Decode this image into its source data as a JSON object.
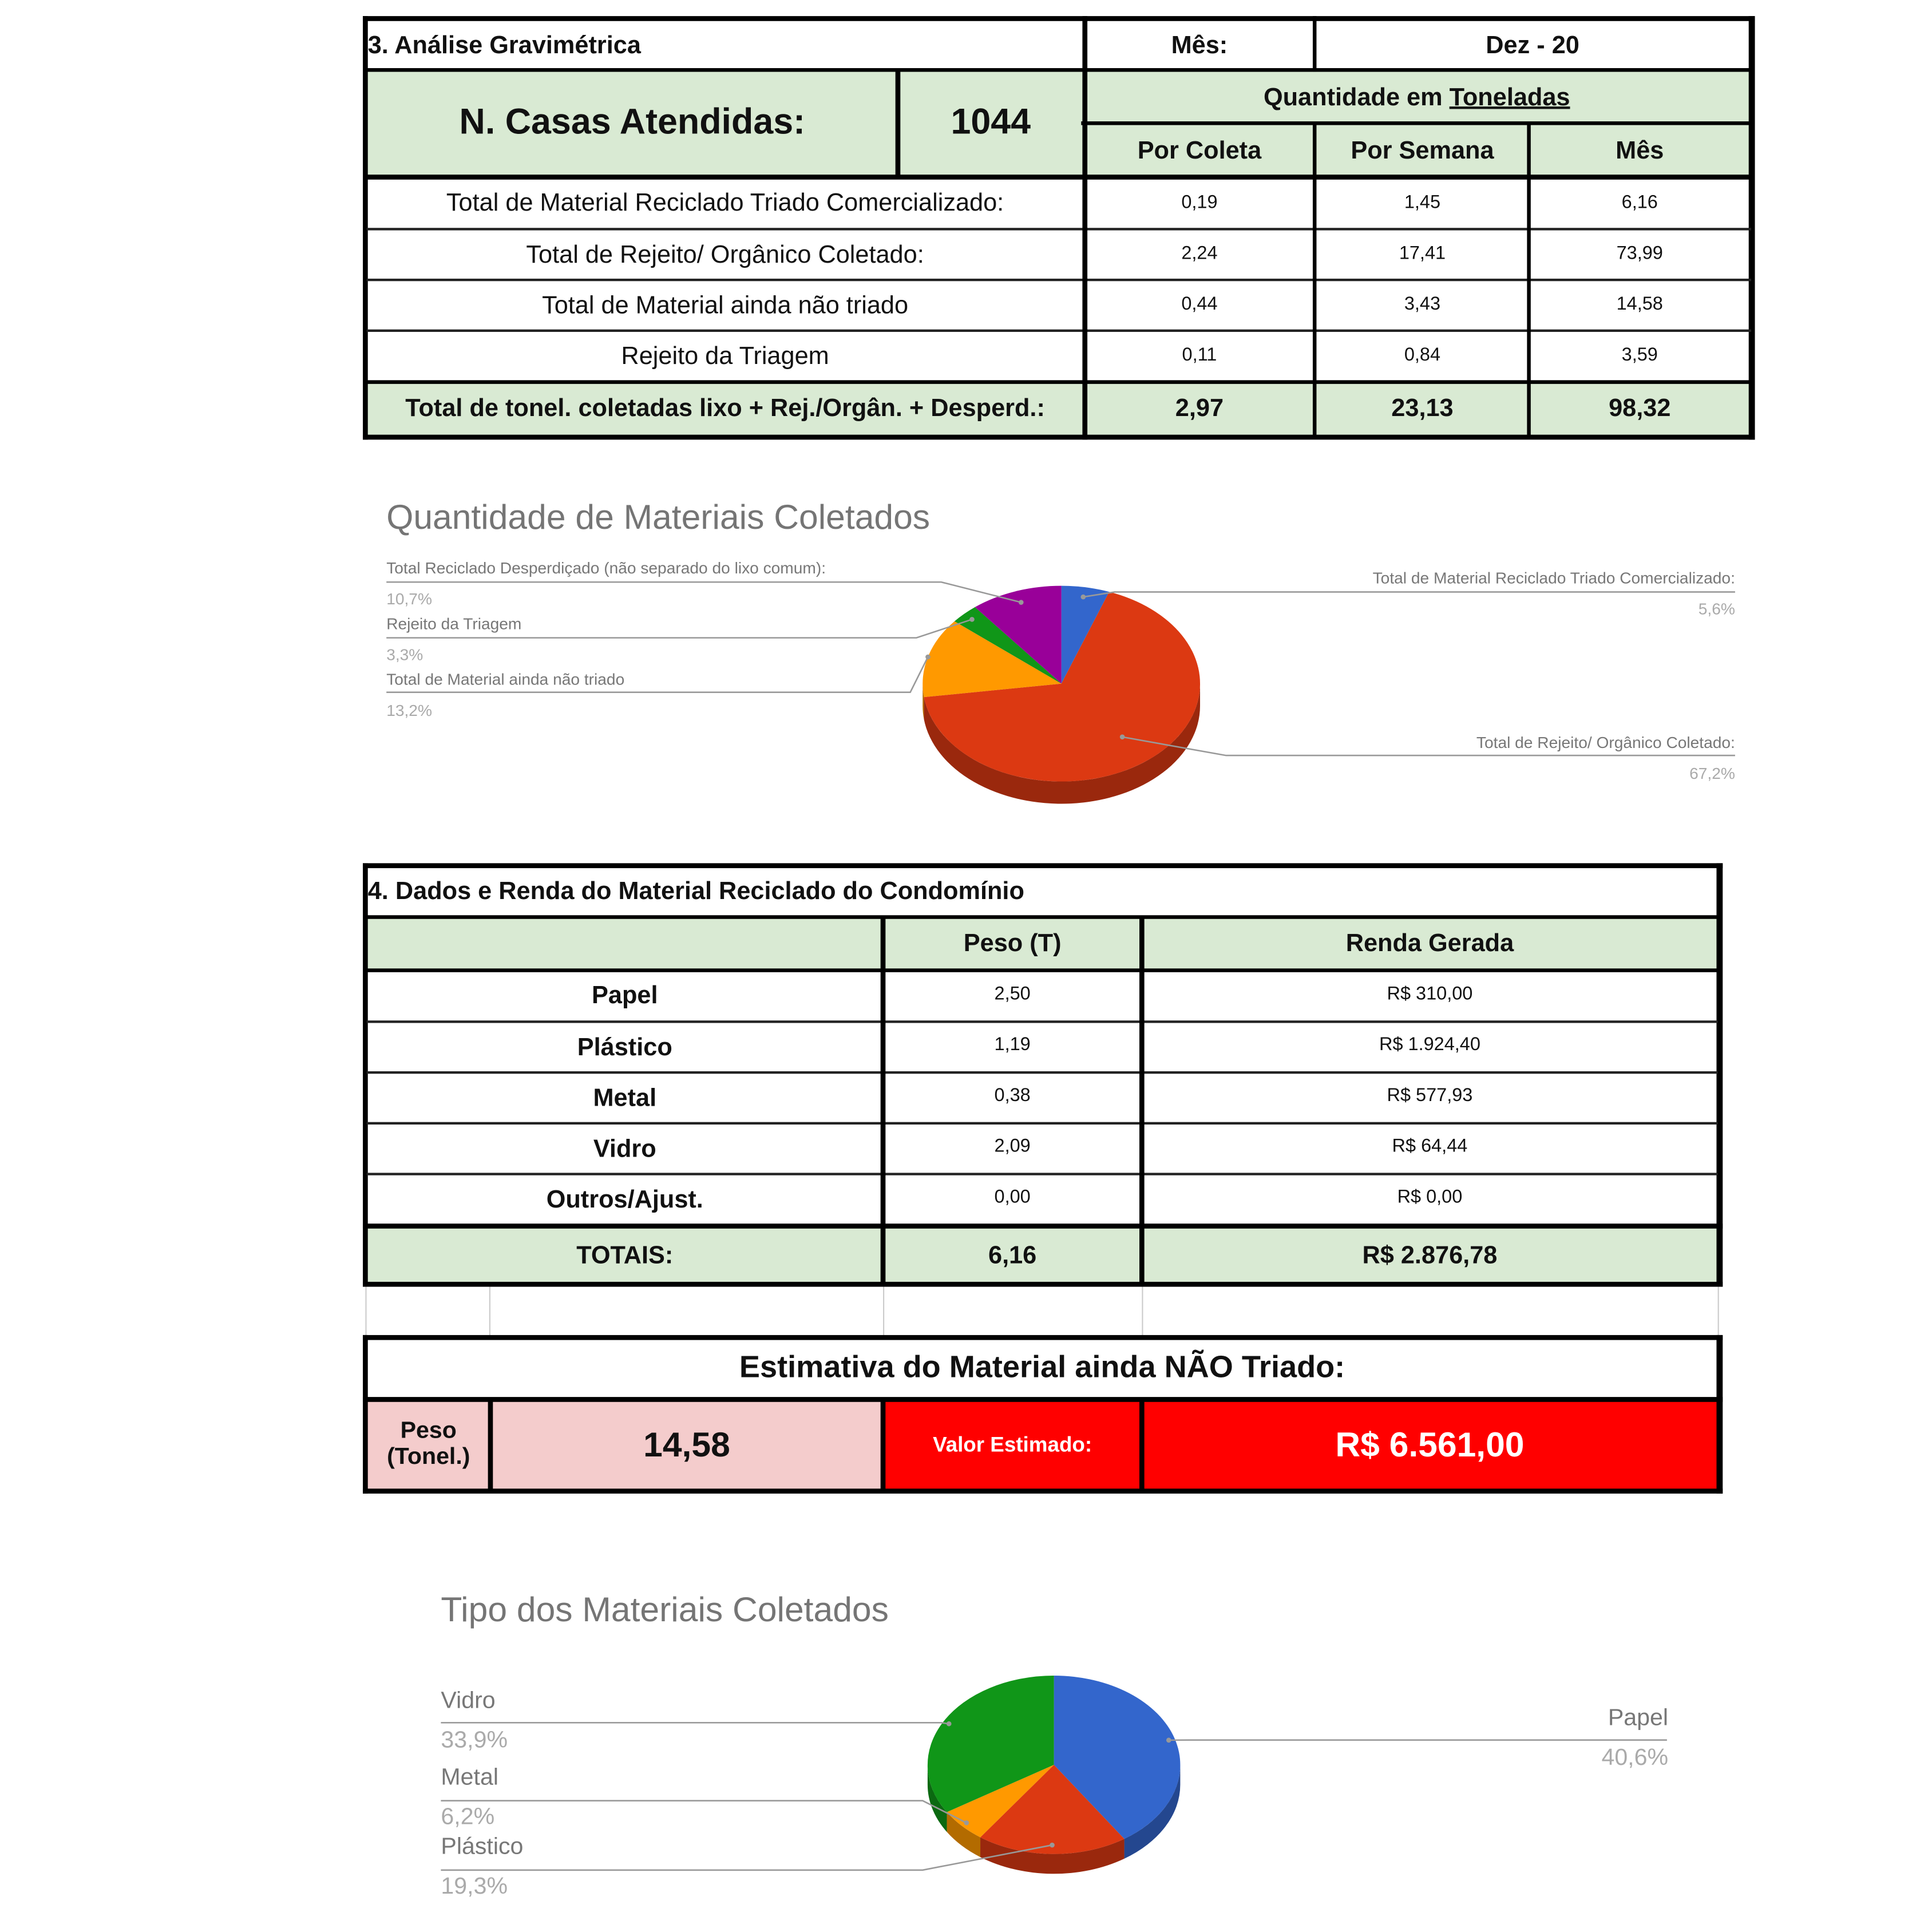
{
  "section3": {
    "title": "3. Análise Gravimétrica",
    "month_label": "Mês:",
    "month_value": "Dez - 20",
    "houses_label": "N. Casas Atendidas:",
    "houses_value": "1044",
    "quantity_header_prefix": "Quantidade em ",
    "quantity_header_unit": "Toneladas",
    "columns": [
      "Por Coleta",
      "Por Semana",
      "Mês"
    ],
    "rows": [
      {
        "label": "Total de Material Reciclado Triado Comercializado:",
        "values": [
          "0,19",
          "1,45",
          "6,16"
        ]
      },
      {
        "label": "Total de Rejeito/ Orgânico Coletado:",
        "values": [
          "2,24",
          "17,41",
          "73,99"
        ]
      },
      {
        "label": "Total de Material ainda não triado",
        "values": [
          "0,44",
          "3,43",
          "14,58"
        ]
      },
      {
        "label": "Rejeito da Triagem",
        "values": [
          "0,11",
          "0,84",
          "3,59"
        ]
      }
    ],
    "total": {
      "label": "Total de tonel. coletadas lixo + Rej./Orgân. + Desperd.:",
      "values": [
        "2,97",
        "23,13",
        "98,32"
      ]
    }
  },
  "chart_data": [
    {
      "type": "pie",
      "style": "3d",
      "title": "Quantidade de Materiais Coletados",
      "slices": [
        {
          "name": "Total de Material Reciclado Triado Comercializado:",
          "percent_label": "5,6%",
          "value": 5.6,
          "color": "#3366cc"
        },
        {
          "name": "Total de Rejeito/ Orgânico Coletado:",
          "percent_label": "67,2%",
          "value": 67.2,
          "color": "#dc3912"
        },
        {
          "name": "Total de Material ainda não triado",
          "percent_label": "13,2%",
          "value": 13.2,
          "color": "#ff9900"
        },
        {
          "name": "Rejeito da Triagem",
          "percent_label": "3,3%",
          "value": 3.3,
          "color": "#109618"
        },
        {
          "name": "Total Reciclado Desperdiçado (não separado do lixo comum):",
          "percent_label": "10,7%",
          "value": 10.7,
          "color": "#990099"
        }
      ]
    },
    {
      "type": "pie",
      "style": "3d",
      "title": "Tipo dos Materiais Coletados",
      "slices": [
        {
          "name": "Papel",
          "percent_label": "40,6%",
          "value": 40.6,
          "color": "#3366cc"
        },
        {
          "name": "Plástico",
          "percent_label": "19,3%",
          "value": 19.3,
          "color": "#dc3912"
        },
        {
          "name": "Metal",
          "percent_label": "6,2%",
          "value": 6.2,
          "color": "#ff9900"
        },
        {
          "name": "Vidro",
          "percent_label": "33,9%",
          "value": 33.9,
          "color": "#109618"
        }
      ]
    }
  ],
  "section4": {
    "title": "4. Dados e Renda do Material Reciclado do Condomínio",
    "columns": [
      "",
      "Peso (T)",
      "Renda Gerada"
    ],
    "rows": [
      {
        "label": "Papel",
        "weight": "2,50",
        "income": "R$ 310,00"
      },
      {
        "label": "Plástico",
        "weight": "1,19",
        "income": "R$ 1.924,40"
      },
      {
        "label": "Metal",
        "weight": "0,38",
        "income": "R$ 577,93"
      },
      {
        "label": "Vidro",
        "weight": "2,09",
        "income": "R$ 64,44"
      },
      {
        "label": "Outros/Ajust.",
        "weight": "0,00",
        "income": "R$ 0,00"
      }
    ],
    "total": {
      "label": "TOTAIS:",
      "weight": "6,16",
      "income": "R$ 2.876,78"
    }
  },
  "estimate": {
    "title": "Estimativa do Material ainda NÃO Triado:",
    "weight_label": "Peso (Tonel.)",
    "weight_value": "14,58",
    "value_label": "Valor Estimado:",
    "value": "R$ 6.561,00",
    "colors": {
      "pink": "#f4cccc",
      "red": "#ff0000"
    }
  }
}
